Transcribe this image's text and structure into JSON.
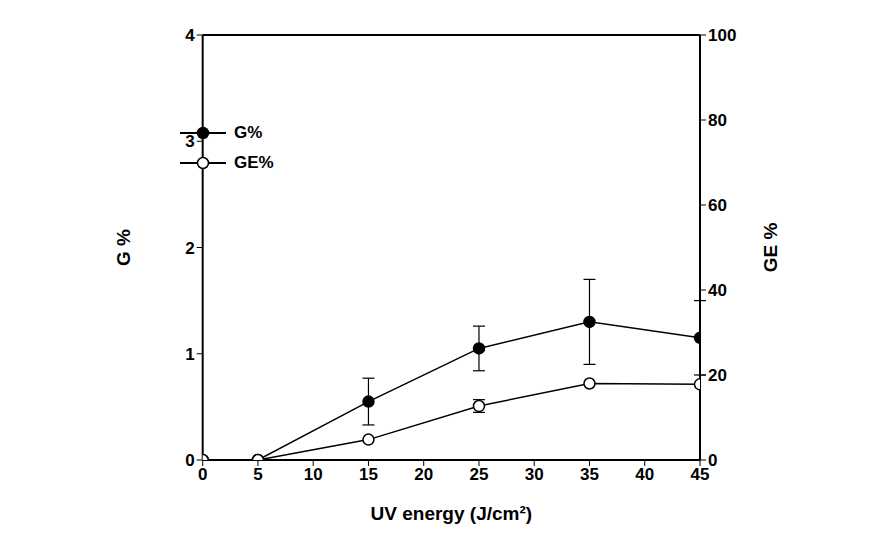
{
  "chart_data": {
    "type": "line",
    "x": [
      0,
      5,
      15,
      25,
      35,
      45
    ],
    "xlabel": "UV energy (J/cm²)",
    "ylabel": "G %",
    "y2label": "GE %",
    "xlim": [
      0,
      45
    ],
    "xticks": [
      0,
      5,
      10,
      15,
      20,
      25,
      30,
      35,
      40,
      45
    ],
    "ylim": [
      0,
      4
    ],
    "yticks": [
      0,
      1,
      2,
      3,
      4
    ],
    "y2lim": [
      0,
      100
    ],
    "y2ticks": [
      0,
      20,
      40,
      60,
      80,
      100
    ],
    "legend": "upper left",
    "series": [
      {
        "name": "G%",
        "color": "#000000",
        "marker": "circle",
        "values": [
          0,
          0,
          0.55,
          1.05,
          1.3,
          1.15
        ],
        "errors": [
          0,
          0,
          0.22,
          0.21,
          0.4,
          0.35
        ]
      },
      {
        "name": "GE%",
        "axis": "y2",
        "color": "#000000",
        "marker": "open_circle",
        "values": [
          0,
          0,
          4.8,
          12.7,
          18,
          17.8
        ],
        "errors": [
          0,
          0,
          0,
          1.5,
          0,
          0
        ]
      }
    ]
  }
}
